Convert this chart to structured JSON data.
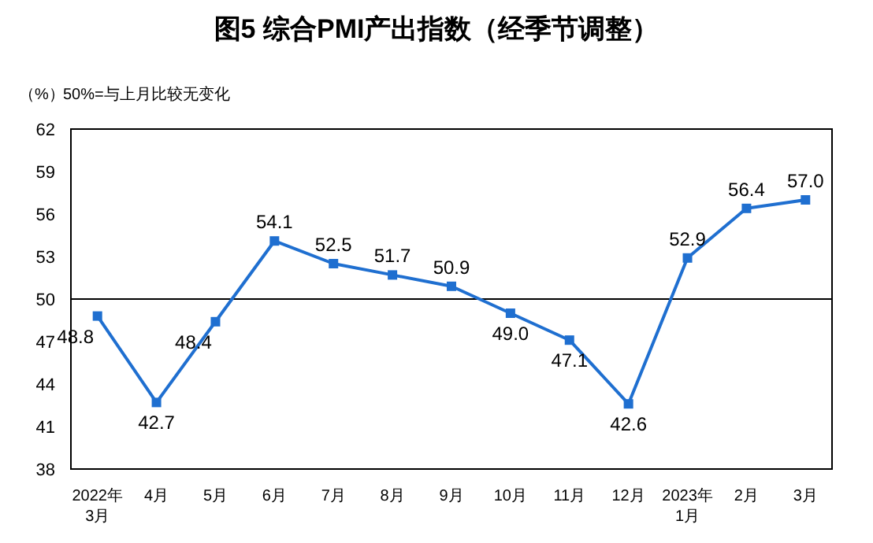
{
  "chart_data": {
    "type": "line",
    "title": "图5 综合PMI产出指数（经季节调整）",
    "ylabel": "（%）",
    "annotations": [
      "50%=与上月比较无变化"
    ],
    "categories": [
      "2022年\n3月",
      "4月",
      "5月",
      "6月",
      "7月",
      "8月",
      "9月",
      "10月",
      "11月",
      "12月",
      "2023年\n1月",
      "2月",
      "3月"
    ],
    "series": [
      {
        "color": "#1f6fd0",
        "values": [
          48.8,
          42.7,
          48.4,
          54.1,
          52.5,
          51.7,
          50.9,
          49.0,
          47.1,
          42.6,
          52.9,
          56.4,
          57.0
        ],
        "value_labels": [
          "48.8",
          "42.7",
          "48.4",
          "54.1",
          "52.5",
          "51.7",
          "50.9",
          "49.0",
          "47.1",
          "42.6",
          "52.9",
          "56.4",
          "57.0"
        ]
      }
    ],
    "ylim": [
      38,
      62
    ],
    "yticks": [
      38,
      41,
      44,
      47,
      50,
      53,
      56,
      59,
      62
    ],
    "ref_lines": [
      {
        "axis": "y",
        "value": 50,
        "color": "#000000"
      }
    ],
    "marker": "square",
    "line_style": "solid",
    "grid": false
  }
}
